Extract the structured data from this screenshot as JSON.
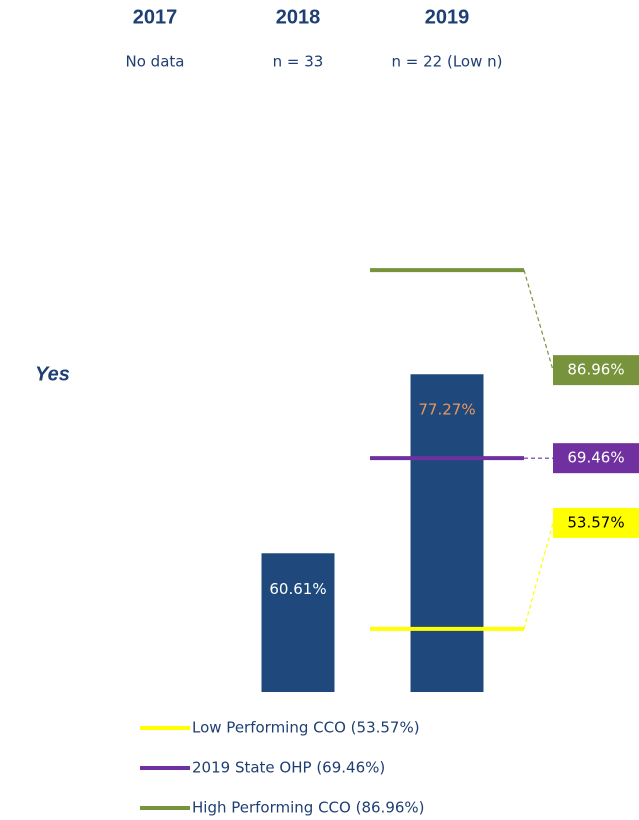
{
  "chart_data": {
    "type": "bar",
    "categories": [
      "2017",
      "2018",
      "2019"
    ],
    "category_notes": [
      "No data",
      "n = 33",
      "n = 22 (Low n)"
    ],
    "row_label": "Yes",
    "values": [
      null,
      60.61,
      77.27
    ],
    "value_labels": [
      null,
      "60.61%",
      "77.27%"
    ],
    "value_label_colors": [
      null,
      "#ffffff",
      "#e9975a"
    ],
    "color": "#1f497d",
    "ylim": [
      47.7,
      100
    ],
    "reference_lines": [
      {
        "name": "Low Performing CCO (53.57%)",
        "color": "#ffff00",
        "value": 53.57,
        "value_label": "53.57%",
        "label_color": "#000000"
      },
      {
        "name": "2019 State OHP (69.46%)",
        "color": "#7030a0",
        "value": 69.46,
        "value_label": "69.46%",
        "label_color": "#ffffff"
      },
      {
        "name": "High Performing CCO (86.96%)",
        "color": "#77933c",
        "value": 86.96,
        "value_label": "86.96%",
        "label_color": "#ffffff"
      }
    ]
  }
}
